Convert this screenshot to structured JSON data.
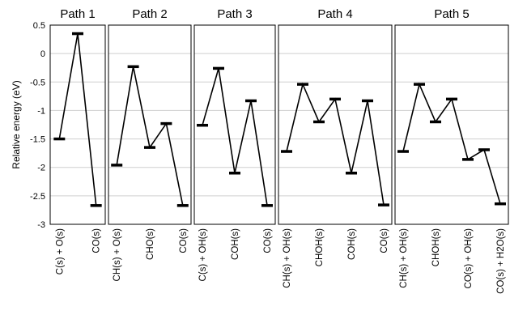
{
  "chart_data": {
    "type": "line",
    "ylabel": "Relative energy (eV)",
    "ylim": [
      -3,
      0.5
    ],
    "yticks": [
      "0.5",
      "0",
      "-0.5",
      "-1",
      "-1.5",
      "-2",
      "-2.5",
      "-3"
    ],
    "grid": true,
    "panels": [
      {
        "title": "Path 1",
        "categories": [
          "C(s) + O(s)",
          "",
          "CO(s)"
        ],
        "values": [
          -1.5,
          0.35,
          -2.67
        ]
      },
      {
        "title": "Path 2",
        "categories": [
          "CH(s) + O(s)",
          "",
          "CHO(s)",
          "",
          "CO(s)"
        ],
        "values": [
          -1.96,
          -0.23,
          -1.65,
          -1.23,
          -2.67
        ]
      },
      {
        "title": "Path 3",
        "categories": [
          "C(s) + OH(s)",
          "",
          "COH(s)",
          "",
          "CO(s)"
        ],
        "values": [
          -1.26,
          -0.26,
          -2.1,
          -0.83,
          -2.67
        ]
      },
      {
        "title": "Path 4",
        "categories": [
          "CH(s) + OH(s)",
          "",
          "CHOH(s)",
          "",
          "COH(s)",
          "",
          "CO(s)"
        ],
        "values": [
          -1.72,
          -0.54,
          -1.2,
          -0.8,
          -2.1,
          -0.83,
          -2.66
        ]
      },
      {
        "title": "Path 5",
        "categories": [
          "CH(s) + OH(s)",
          "",
          "CHOH(s)",
          "",
          "CO(s) + OH(s)",
          "",
          "CO(s) + H2O(s)"
        ],
        "values": [
          -1.72,
          -0.54,
          -1.2,
          -0.8,
          -1.86,
          -1.69,
          -2.64
        ]
      }
    ]
  }
}
